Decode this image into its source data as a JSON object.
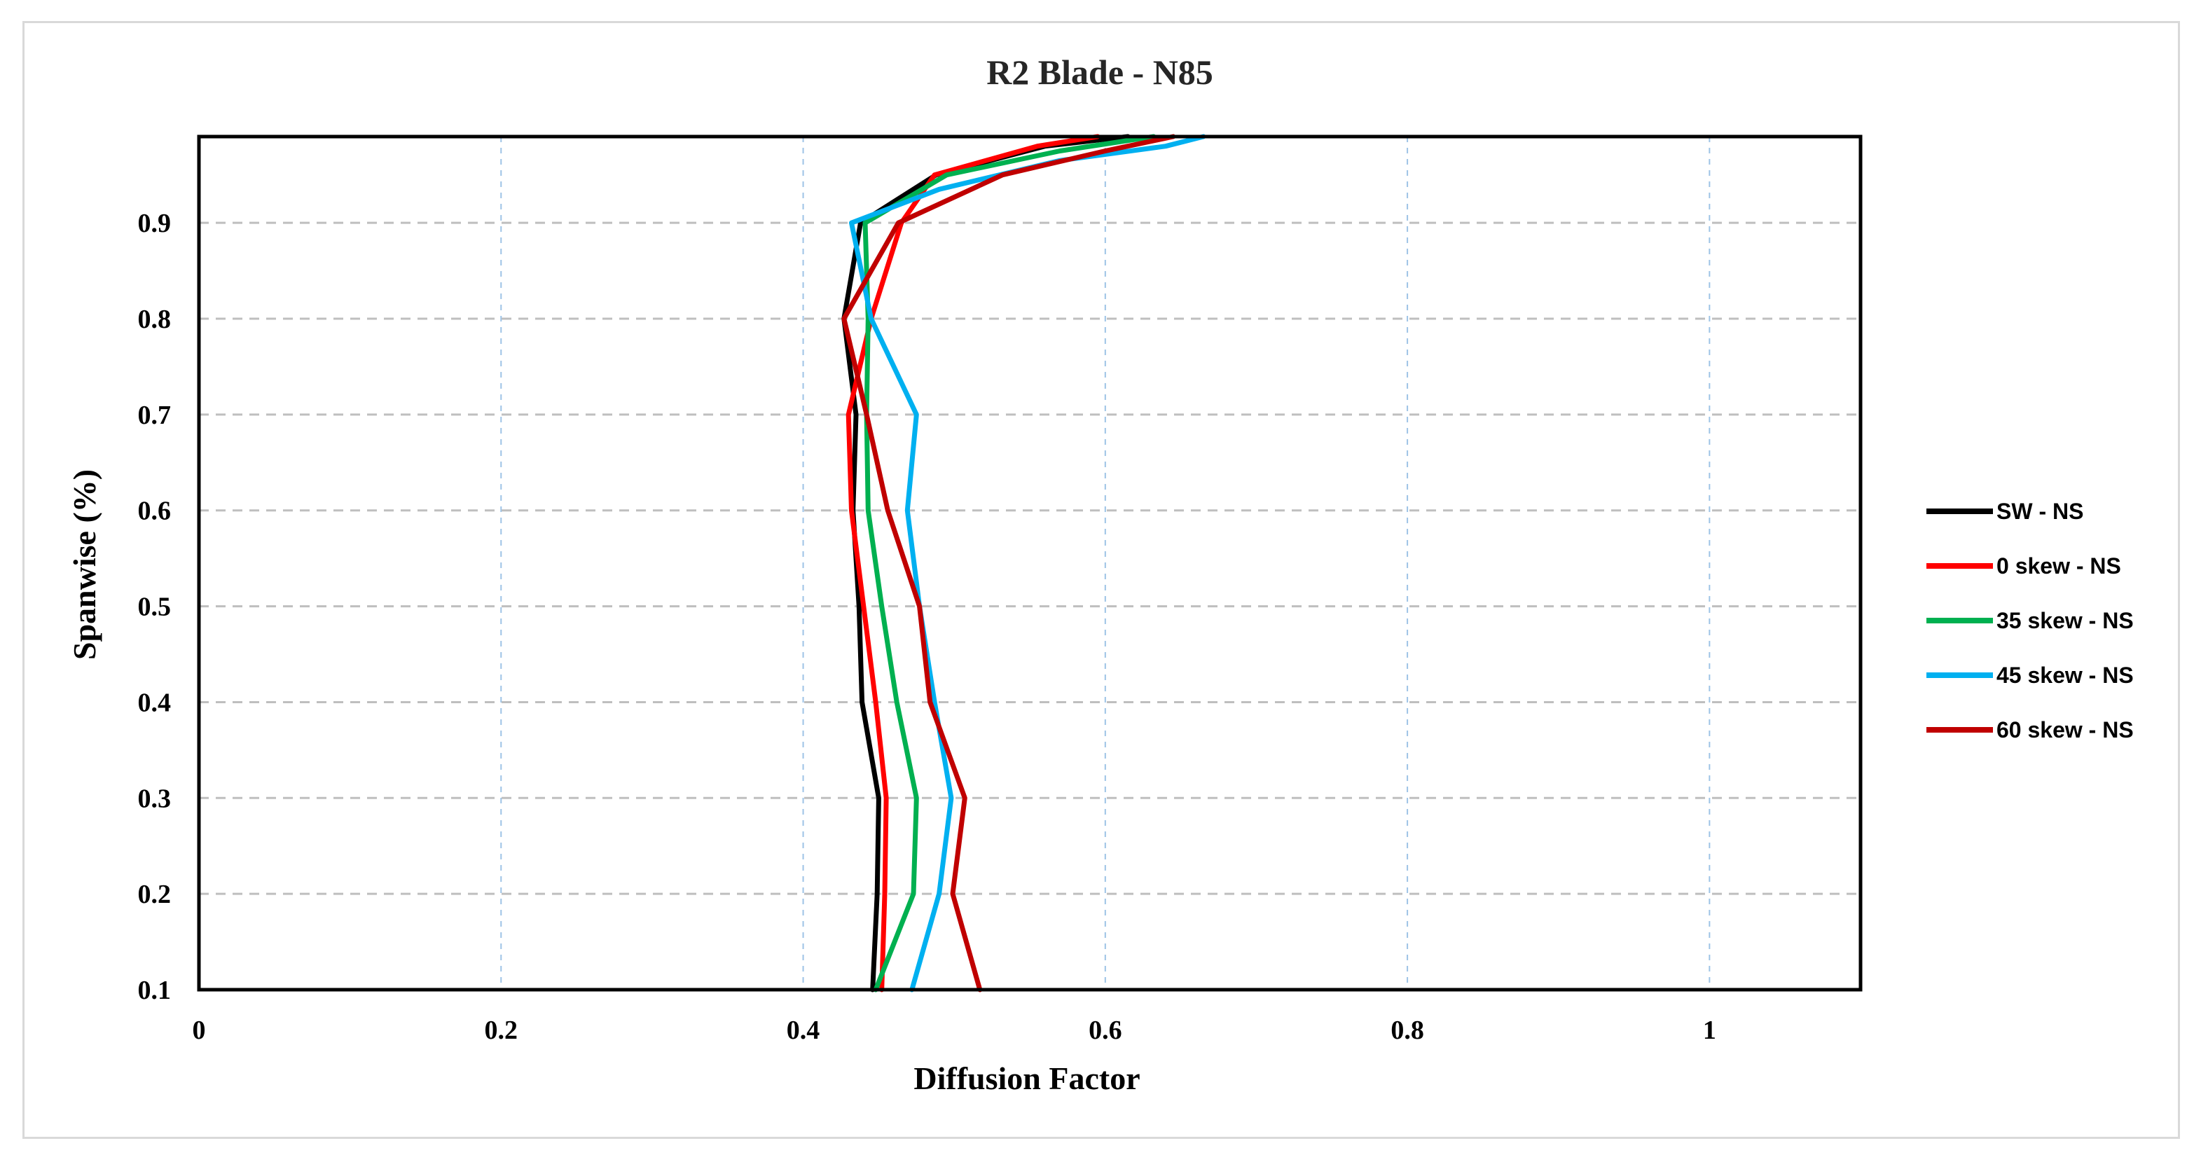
{
  "chart_data": {
    "type": "line",
    "title": "R2 Blade - N85",
    "xlabel": "Diffusion Factor",
    "ylabel": "Spanwise (%)",
    "xlim": [
      0,
      1.1
    ],
    "ylim": [
      0.1,
      0.99
    ],
    "xticks": [
      0,
      0.2,
      0.4,
      0.6,
      0.8,
      1
    ],
    "xtick_labels": [
      "0",
      "0.2",
      "0.4",
      "0.6",
      "0.8",
      "1"
    ],
    "yticks": [
      0.1,
      0.2,
      0.3,
      0.4,
      0.5,
      0.6,
      0.7,
      0.8,
      0.9
    ],
    "ytick_labels": [
      "0.1",
      "0.2",
      "0.3",
      "0.4",
      "0.5",
      "0.6",
      "0.7",
      "0.8",
      "0.9"
    ],
    "grid": true,
    "legend_position": "right",
    "series": [
      {
        "name": "SW - NS",
        "color": "#000000",
        "points": [
          [
            0.446,
            0.1
          ],
          [
            0.449,
            0.2
          ],
          [
            0.45,
            0.3
          ],
          [
            0.439,
            0.4
          ],
          [
            0.437,
            0.5
          ],
          [
            0.433,
            0.6
          ],
          [
            0.435,
            0.7
          ],
          [
            0.427,
            0.8
          ],
          [
            0.438,
            0.9
          ],
          [
            0.488,
            0.95
          ],
          [
            0.56,
            0.98
          ],
          [
            0.615,
            0.99
          ]
        ]
      },
      {
        "name": "0 skew - NS",
        "color": "#ff0000",
        "points": [
          [
            0.452,
            0.1
          ],
          [
            0.454,
            0.2
          ],
          [
            0.455,
            0.3
          ],
          [
            0.448,
            0.4
          ],
          [
            0.44,
            0.5
          ],
          [
            0.432,
            0.6
          ],
          [
            0.43,
            0.7
          ],
          [
            0.445,
            0.8
          ],
          [
            0.465,
            0.9
          ],
          [
            0.487,
            0.95
          ],
          [
            0.555,
            0.98
          ],
          [
            0.595,
            0.99
          ]
        ]
      },
      {
        "name": "35 skew - NS",
        "color": "#00b050",
        "points": [
          [
            0.448,
            0.1
          ],
          [
            0.473,
            0.2
          ],
          [
            0.475,
            0.3
          ],
          [
            0.462,
            0.4
          ],
          [
            0.452,
            0.5
          ],
          [
            0.443,
            0.6
          ],
          [
            0.442,
            0.7
          ],
          [
            0.443,
            0.8
          ],
          [
            0.441,
            0.9
          ],
          [
            0.495,
            0.95
          ],
          [
            0.57,
            0.975
          ],
          [
            0.632,
            0.99
          ]
        ]
      },
      {
        "name": "45 skew - NS",
        "color": "#00b0f0",
        "points": [
          [
            0.472,
            0.1
          ],
          [
            0.49,
            0.2
          ],
          [
            0.498,
            0.3
          ],
          [
            0.487,
            0.4
          ],
          [
            0.477,
            0.5
          ],
          [
            0.469,
            0.6
          ],
          [
            0.475,
            0.7
          ],
          [
            0.445,
            0.8
          ],
          [
            0.432,
            0.9
          ],
          [
            0.49,
            0.935
          ],
          [
            0.57,
            0.965
          ],
          [
            0.64,
            0.98
          ],
          [
            0.665,
            0.99
          ]
        ]
      },
      {
        "name": "60 skew - NS",
        "color": "#c00000",
        "points": [
          [
            0.517,
            0.1
          ],
          [
            0.499,
            0.2
          ],
          [
            0.507,
            0.3
          ],
          [
            0.484,
            0.4
          ],
          [
            0.477,
            0.5
          ],
          [
            0.456,
            0.6
          ],
          [
            0.442,
            0.7
          ],
          [
            0.427,
            0.8
          ],
          [
            0.463,
            0.9
          ],
          [
            0.532,
            0.95
          ],
          [
            0.6,
            0.975
          ],
          [
            0.645,
            0.99
          ]
        ]
      }
    ]
  }
}
